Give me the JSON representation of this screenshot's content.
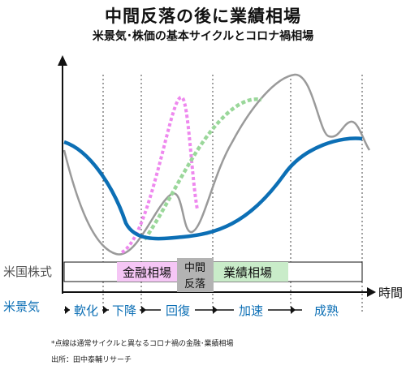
{
  "title": "中間反落の後に業績相場",
  "subtitle": "米景気･株価の基本サイクルとコロナ禍相場",
  "chart_data": {
    "type": "line",
    "x_axis_label": "時間",
    "stock_row_label": "米国株式",
    "economy_row_label": "米景気",
    "phases": [
      {
        "label": "金融相場",
        "color": "#f5c6f5"
      },
      {
        "label": "中間\n反落",
        "color": "#b3b3b3"
      },
      {
        "label": "業績相場",
        "color": "#c9ecc9"
      }
    ],
    "economy_stages": [
      "軟化",
      "下降",
      "回復",
      "加速",
      "成熟"
    ],
    "series": [
      {
        "name": "",
        "color": "#0c6fb5",
        "style": "solid"
      },
      {
        "name": "",
        "color": "#9a9a9a",
        "style": "solid"
      },
      {
        "name": "",
        "color": "#ee88ee",
        "style": "dotted"
      },
      {
        "name": "",
        "color": "#9ad79a",
        "style": "dotted"
      }
    ]
  },
  "notes": {
    "footnote": "*点線は通常サイクルと異なるコロナ禍の金融･業績相場",
    "source": "出所：田中泰輔リサーチ"
  }
}
